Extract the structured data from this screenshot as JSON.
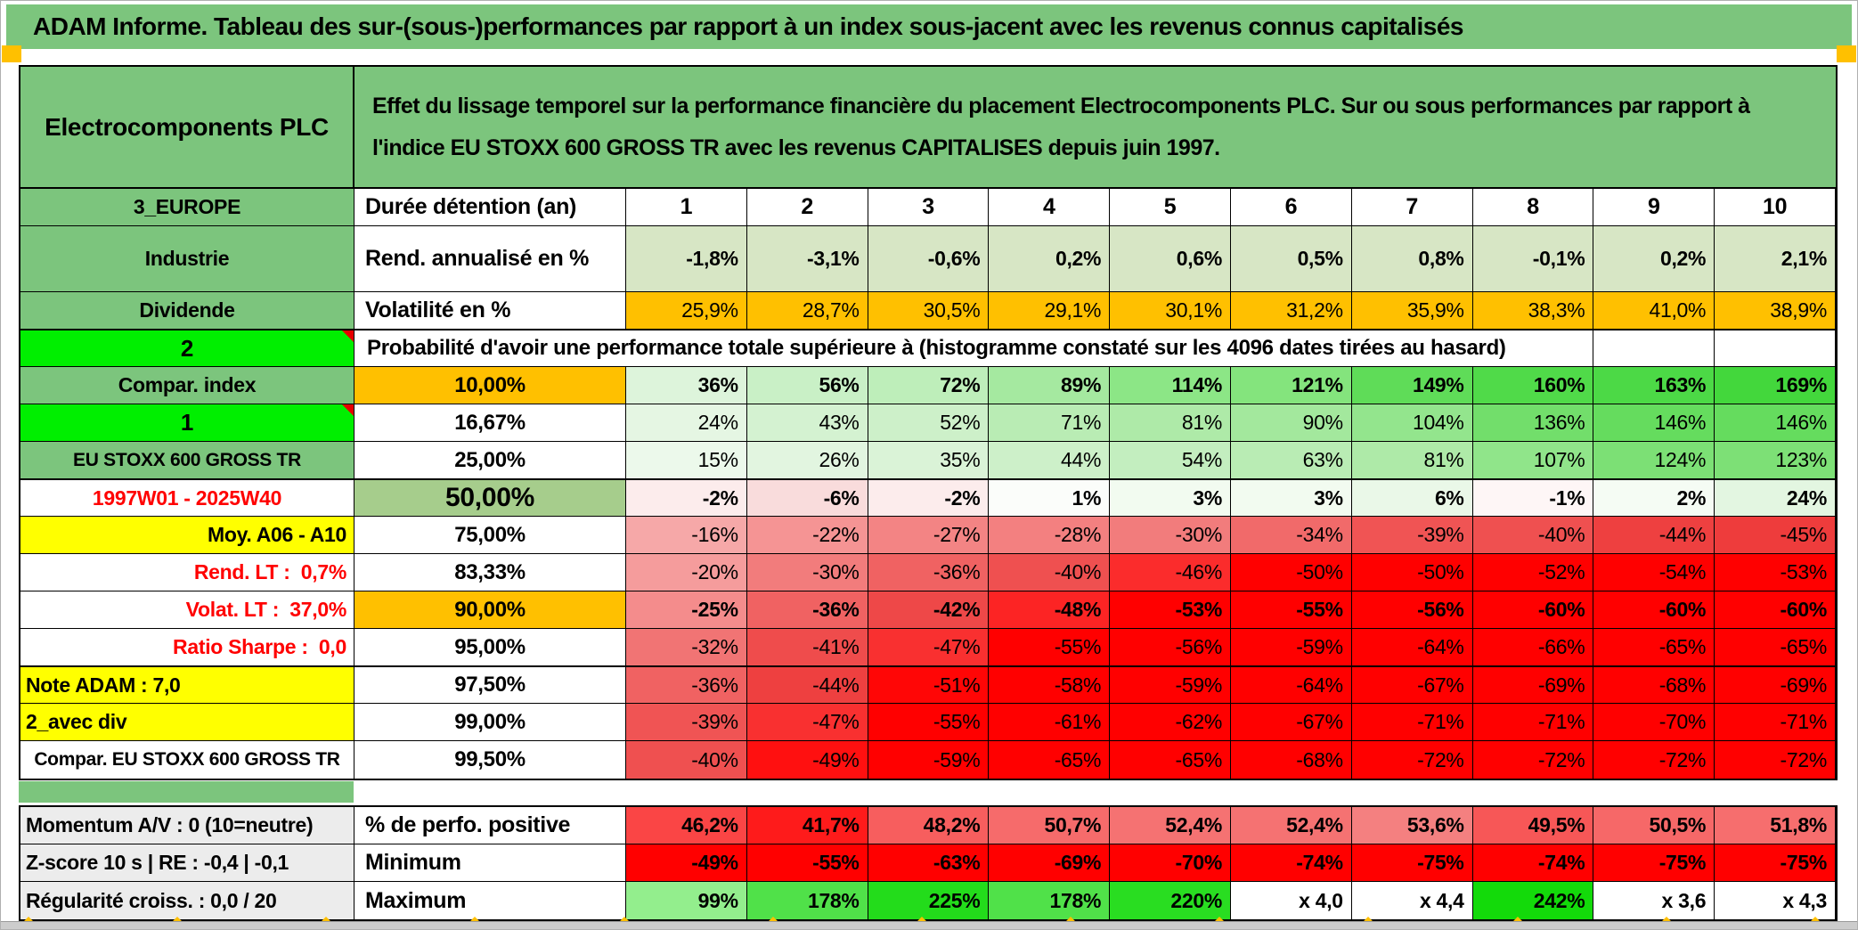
{
  "title": "ADAM Informe. Tableau des sur-(sous-)performances par rapport à un index sous-jacent avec les revenus connus capitalisés",
  "header": {
    "company": "Electrocomponents PLC",
    "description": "Effet du lissage temporel sur la performance financière du placement Electrocomponents PLC. Sur ou sous performances par rapport à l'indice EU STOXX 600 GROSS TR avec les revenus CAPITALISES depuis juin 1997."
  },
  "colors": {
    "band_green": "#7cc57d",
    "bright_green": "#00ef00",
    "orange": "#ffc000",
    "yellow": "#ffff00",
    "red_text": "#ff0000"
  },
  "table": {
    "rows": [
      {
        "label": "3_EUROPE",
        "label_style": "green",
        "sub": "Durée détention (an)",
        "sub_style": "label",
        "center": true,
        "values": [
          "1",
          "2",
          "3",
          "4",
          "5",
          "6",
          "7",
          "8",
          "9",
          "10"
        ],
        "colors": [
          "#ffffff",
          "#ffffff",
          "#ffffff",
          "#ffffff",
          "#ffffff",
          "#ffffff",
          "#ffffff",
          "#ffffff",
          "#ffffff",
          "#ffffff"
        ]
      },
      {
        "label": "Industrie",
        "label_style": "green",
        "sub": "Rend. annualisé en %",
        "sub_style": "label",
        "bold": true,
        "tall": true,
        "values": [
          "-1,8%",
          "-3,1%",
          "-0,6%",
          "0,2%",
          "0,6%",
          "0,5%",
          "0,8%",
          "-0,1%",
          "0,2%",
          "2,1%"
        ],
        "colors": [
          "#d7e6c5",
          "#d7e6c5",
          "#d7e6c5",
          "#d7e6c5",
          "#d7e6c5",
          "#d7e6c5",
          "#d7e6c5",
          "#d7e6c5",
          "#d7e6c5",
          "#d7e6c5"
        ]
      },
      {
        "label": "Dividende",
        "label_style": "green",
        "sub": "Volatilité en %",
        "sub_style": "label",
        "values": [
          "25,9%",
          "28,7%",
          "30,5%",
          "29,1%",
          "30,1%",
          "31,2%",
          "35,9%",
          "38,3%",
          "41,0%",
          "38,9%"
        ],
        "colors": [
          "#ffc000",
          "#ffc000",
          "#ffc000",
          "#ffc000",
          "#ffc000",
          "#ffc000",
          "#ffc000",
          "#ffc000",
          "#ffc000",
          "#ffc000"
        ]
      },
      {
        "type": "prob-header",
        "label": "2",
        "label_style": "bright",
        "marker": true,
        "thick_top": true,
        "text": "Probabilité d'avoir une performance totale supérieure à (histogramme constaté sur les 4096 dates tirées au hasard)",
        "empty": 2
      },
      {
        "label": "Compar. index",
        "label_style": "green",
        "sub": "10,00%",
        "sub_style": "orange",
        "bold": true,
        "values": [
          "36%",
          "56%",
          "72%",
          "89%",
          "114%",
          "121%",
          "149%",
          "160%",
          "163%",
          "169%"
        ],
        "colors": [
          "#ddf4db",
          "#c9f0c6",
          "#beeeba",
          "#a5e9a0",
          "#8ce686",
          "#84e47d",
          "#5fdc58",
          "#50da49",
          "#4cd946",
          "#43d73c"
        ]
      },
      {
        "label": "1",
        "label_style": "bright",
        "marker": true,
        "sub": "16,67%",
        "values": [
          "24%",
          "43%",
          "52%",
          "71%",
          "81%",
          "90%",
          "104%",
          "136%",
          "146%",
          "146%"
        ],
        "colors": [
          "#e5f6e3",
          "#d4f2d1",
          "#cdf0c9",
          "#b9ecb4",
          "#aeeaa8",
          "#a3e89d",
          "#93e58d",
          "#72de6b",
          "#65dc5e",
          "#65dc5e"
        ]
      },
      {
        "label": "EU STOXX 600 GROSS TR",
        "label_style": "green small",
        "sub": "25,00%",
        "values": [
          "15%",
          "26%",
          "35%",
          "44%",
          "54%",
          "63%",
          "81%",
          "107%",
          "124%",
          "123%"
        ],
        "colors": [
          "#ecf9eb",
          "#e2f5e0",
          "#daf3d7",
          "#cdf0c9",
          "#c3eebf",
          "#b9ecb4",
          "#aeeaa8",
          "#90e58a",
          "#7ce075",
          "#7de076"
        ]
      },
      {
        "label": "1997W01 - 2025W40",
        "label_style": "red",
        "sub": "50,00%",
        "sub_style": "big",
        "bold": true,
        "thick_top": true,
        "values": [
          "-2%",
          "-6%",
          "-2%",
          "1%",
          "3%",
          "3%",
          "6%",
          "-1%",
          "2%",
          "24%"
        ],
        "colors": [
          "#fcecec",
          "#f9dcdc",
          "#fcecec",
          "#fbfdfa",
          "#f2fbf0",
          "#f2fbf0",
          "#eaf8e8",
          "#fef6f6",
          "#f5fcf4",
          "#e3f6e1"
        ]
      },
      {
        "label": "Moy. A06 - A10",
        "label_style": "yellow rt",
        "sub": "75,00%",
        "values": [
          "-16%",
          "-22%",
          "-27%",
          "-28%",
          "-30%",
          "-34%",
          "-39%",
          "-40%",
          "-44%",
          "-45%"
        ],
        "colors": [
          "#f6a8a8",
          "#f59494",
          "#f38484",
          "#f38080",
          "#f27c7c",
          "#f16a6a",
          "#f05454",
          "#ef5050",
          "#ee4040",
          "#ee3c3c"
        ]
      },
      {
        "label": "Rend. LT :  0,7%",
        "label_style": "red rt",
        "sub": "83,33%",
        "values": [
          "-20%",
          "-30%",
          "-36%",
          "-40%",
          "-46%",
          "-50%",
          "-50%",
          "-52%",
          "-54%",
          "-53%"
        ],
        "colors": [
          "#f59c9c",
          "#f27c7c",
          "#f06262",
          "#ef5050",
          "#fb2c2c",
          "#ff0000",
          "#ff0000",
          "#ff0000",
          "#ff0000",
          "#ff0000"
        ]
      },
      {
        "label": "Volat. LT :  37,0%",
        "label_style": "red rt",
        "sub": "90,00%",
        "sub_style": "orange",
        "bold": true,
        "values": [
          "-25%",
          "-36%",
          "-42%",
          "-48%",
          "-53%",
          "-55%",
          "-56%",
          "-60%",
          "-60%",
          "-60%"
        ],
        "colors": [
          "#f48c8c",
          "#f06262",
          "#ee4848",
          "#fc2424",
          "#ff0000",
          "#ff0000",
          "#ff0000",
          "#ff0000",
          "#ff0000",
          "#ff0000"
        ]
      },
      {
        "label": "Ratio Sharpe :  0,0",
        "label_style": "red rt",
        "sub": "95,00%",
        "values": [
          "-32%",
          "-41%",
          "-47%",
          "-55%",
          "-56%",
          "-59%",
          "-64%",
          "-66%",
          "-65%",
          "-65%"
        ],
        "colors": [
          "#f17474",
          "#ef4c4c",
          "#f93030",
          "#ff0000",
          "#ff0000",
          "#ff0000",
          "#ff0000",
          "#ff0000",
          "#ff0000",
          "#ff0000"
        ]
      },
      {
        "label": "Note ADAM : 7,0",
        "label_style": "yellow lt",
        "sub": "97,50%",
        "thick_top": true,
        "values": [
          "-36%",
          "-44%",
          "-51%",
          "-58%",
          "-59%",
          "-64%",
          "-67%",
          "-69%",
          "-68%",
          "-69%"
        ],
        "colors": [
          "#f06262",
          "#ee4040",
          "#ff0606",
          "#ff0000",
          "#ff0000",
          "#ff0000",
          "#ff0000",
          "#ff0000",
          "#ff0000",
          "#ff0000"
        ]
      },
      {
        "label": "2_avec div",
        "label_style": "yellow lt",
        "sub": "99,00%",
        "values": [
          "-39%",
          "-47%",
          "-55%",
          "-61%",
          "-62%",
          "-67%",
          "-71%",
          "-71%",
          "-70%",
          "-71%"
        ],
        "colors": [
          "#f05454",
          "#f93030",
          "#ff0000",
          "#ff0000",
          "#ff0000",
          "#ff0000",
          "#ff0000",
          "#ff0000",
          "#ff0000",
          "#ff0000"
        ]
      },
      {
        "label": "Compar. EU STOXX 600 GROSS TR",
        "label_style": "small",
        "sub": "99,50%",
        "values": [
          "-40%",
          "-49%",
          "-59%",
          "-65%",
          "-65%",
          "-68%",
          "-72%",
          "-72%",
          "-72%",
          "-72%"
        ],
        "colors": [
          "#ef5050",
          "#ff1010",
          "#ff0000",
          "#ff0000",
          "#ff0000",
          "#ff0000",
          "#ff0000",
          "#ff0000",
          "#ff0000",
          "#ff0000"
        ]
      }
    ],
    "bottom_rows": [
      {
        "label": "Momentum A/V : 0 (10=neutre)",
        "label_style": "gray lt",
        "sub": "% de perfo. positive",
        "sub_style": "label",
        "bold": true,
        "values": [
          "46,2%",
          "41,7%",
          "48,2%",
          "50,7%",
          "52,4%",
          "52,4%",
          "53,6%",
          "49,5%",
          "50,5%",
          "51,8%"
        ],
        "colors": [
          "#fa4545",
          "#fe1b1b",
          "#f75e5e",
          "#f66b6b",
          "#f57272",
          "#f57272",
          "#f48080",
          "#f75757",
          "#f66868",
          "#f66e6e"
        ]
      },
      {
        "label": "Z-score 10 s | RE : -0,4 | -0,1",
        "label_style": "gray lt",
        "sub": "Minimum",
        "sub_style": "label",
        "bold": true,
        "values": [
          "-49%",
          "-55%",
          "-63%",
          "-69%",
          "-70%",
          "-74%",
          "-75%",
          "-74%",
          "-75%",
          "-75%"
        ],
        "colors": [
          "#ff0000",
          "#ff0000",
          "#ff0000",
          "#ff0000",
          "#ff0000",
          "#ff0000",
          "#ff0000",
          "#ff0000",
          "#ff0000",
          "#ff0000"
        ]
      },
      {
        "label": "Régularité croiss. : 0,0 / 20",
        "label_style": "gray lt",
        "sub": "Maximum",
        "sub_style": "label",
        "bold": true,
        "values": [
          "99%",
          "178%",
          "225%",
          "178%",
          "220%",
          "x 4,0",
          "x 4,4",
          "242%",
          "x 3,6",
          "x 4,3"
        ],
        "colors": [
          "#93ee8d",
          "#50e149",
          "#23dc1b",
          "#50e149",
          "#29dd21",
          "#ffffff",
          "#ffffff",
          "#13da0a",
          "#ffffff",
          "#ffffff"
        ]
      }
    ]
  }
}
